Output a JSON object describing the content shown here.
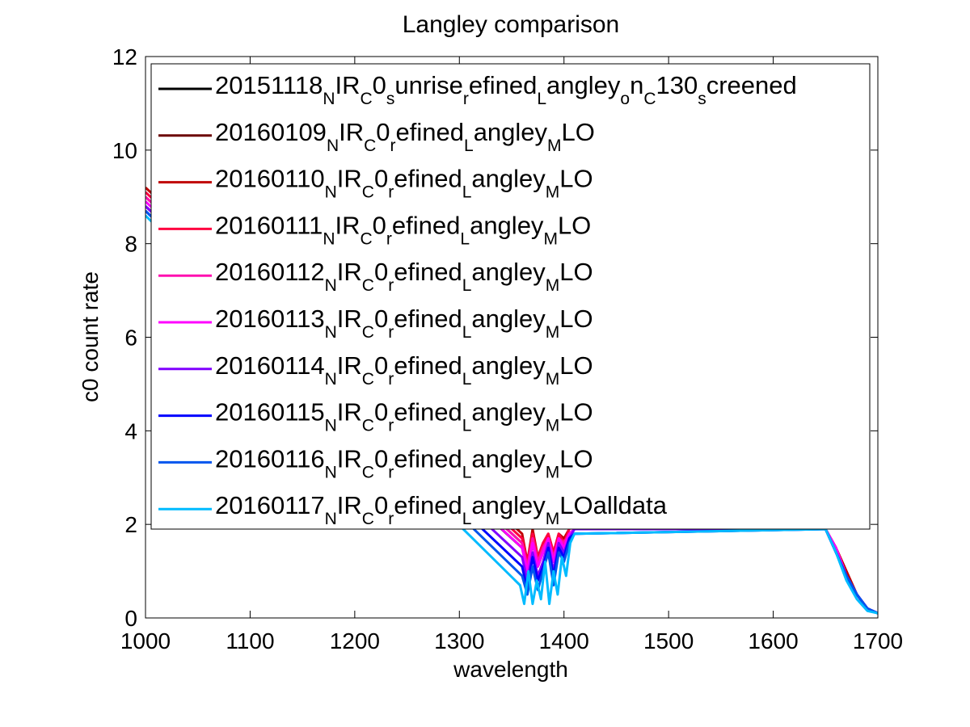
{
  "chart_data": {
    "type": "line",
    "title": "Langley comparison",
    "xlabel": "wavelength",
    "ylabel": "c0 count rate",
    "xlim": [
      1000,
      1700
    ],
    "ylim": [
      0,
      12
    ],
    "xticks": [
      1000,
      1100,
      1200,
      1300,
      1400,
      1500,
      1600,
      1700
    ],
    "yticks": [
      0,
      2,
      4,
      6,
      8,
      10,
      12
    ],
    "xtick_labels": [
      "1000",
      "1100",
      "1200",
      "1300",
      "1400",
      "1500",
      "1600",
      "1700"
    ],
    "ytick_labels": [
      "0",
      "2",
      "4",
      "6",
      "8",
      "10",
      "12"
    ],
    "grid": false,
    "legend_position": "top-right",
    "series": [
      {
        "name": "20151118_NIR_C0_sunrise_refined_Langley_on_C130_screened",
        "legend_parts": [
          [
            "20151118",
            ""
          ],
          [
            "N",
            "sub"
          ],
          [
            "IR",
            ""
          ],
          [
            "C",
            "sub"
          ],
          [
            "0",
            ""
          ],
          [
            "s",
            "sub"
          ],
          [
            "unrise",
            ""
          ],
          [
            "r",
            "sub"
          ],
          [
            "efined",
            ""
          ],
          [
            "L",
            "sub"
          ],
          [
            "angley",
            ""
          ],
          [
            "o",
            "sub"
          ],
          [
            "n",
            ""
          ],
          [
            "C",
            "sub"
          ],
          [
            "130",
            ""
          ],
          [
            "s",
            "sub"
          ],
          [
            "creened",
            ""
          ]
        ],
        "color": "#000000",
        "x": [
          1000,
          1360,
          1365,
          1370,
          1375,
          1380,
          1385,
          1390,
          1395,
          1400,
          1405,
          1410,
          1650,
          1660,
          1670,
          1680,
          1690,
          1700
        ],
        "y": [
          8.8,
          1.5,
          1.0,
          1.6,
          1.1,
          1.4,
          1.7,
          1.3,
          1.7,
          1.5,
          1.8,
          1.9,
          1.9,
          1.4,
          0.9,
          0.5,
          0.2,
          0.1
        ]
      },
      {
        "name": "20160109_NIR_C0_refined_Langley_MLO",
        "legend_parts": [
          [
            "20160109",
            ""
          ],
          [
            "N",
            "sub"
          ],
          [
            "IR",
            ""
          ],
          [
            "C",
            "sub"
          ],
          [
            "0",
            ""
          ],
          [
            "r",
            "sub"
          ],
          [
            "efined",
            ""
          ],
          [
            "L",
            "sub"
          ],
          [
            "angley",
            ""
          ],
          [
            "M",
            "sub"
          ],
          [
            "LO",
            ""
          ]
        ],
        "color": "#6b0000",
        "x": [
          1000,
          1360,
          1365,
          1370,
          1375,
          1380,
          1385,
          1390,
          1395,
          1400,
          1405,
          1410,
          1650,
          1660,
          1670,
          1680,
          1690,
          1700
        ],
        "y": [
          9.0,
          1.6,
          1.1,
          1.7,
          1.2,
          1.5,
          1.7,
          1.3,
          1.7,
          1.6,
          1.8,
          1.9,
          1.9,
          1.5,
          0.9,
          0.5,
          0.2,
          0.1
        ]
      },
      {
        "name": "20160110_NIR_C0_refined_Langley_MLO",
        "legend_parts": [
          [
            "20160110",
            ""
          ],
          [
            "N",
            "sub"
          ],
          [
            "IR",
            ""
          ],
          [
            "C",
            "sub"
          ],
          [
            "0",
            ""
          ],
          [
            "r",
            "sub"
          ],
          [
            "efined",
            ""
          ],
          [
            "L",
            "sub"
          ],
          [
            "angley",
            ""
          ],
          [
            "M",
            "sub"
          ],
          [
            "LO",
            ""
          ]
        ],
        "color": "#c00000",
        "x": [
          1000,
          1360,
          1365,
          1370,
          1375,
          1380,
          1385,
          1390,
          1395,
          1400,
          1405,
          1410,
          1650,
          1660,
          1670,
          1680,
          1690,
          1700
        ],
        "y": [
          9.2,
          1.8,
          1.2,
          1.9,
          1.3,
          1.6,
          1.8,
          1.4,
          1.8,
          1.7,
          1.9,
          2.0,
          1.9,
          1.5,
          1.0,
          0.5,
          0.2,
          0.1
        ]
      },
      {
        "name": "20160111_NIR_C0_refined_Langley_MLO",
        "legend_parts": [
          [
            "20160111",
            ""
          ],
          [
            "N",
            "sub"
          ],
          [
            "IR",
            ""
          ],
          [
            "C",
            "sub"
          ],
          [
            "0",
            ""
          ],
          [
            "r",
            "sub"
          ],
          [
            "efined",
            ""
          ],
          [
            "L",
            "sub"
          ],
          [
            "angley",
            ""
          ],
          [
            "M",
            "sub"
          ],
          [
            "LO",
            ""
          ]
        ],
        "color": "#ff0040",
        "x": [
          1000,
          1360,
          1365,
          1370,
          1375,
          1380,
          1385,
          1390,
          1395,
          1400,
          1405,
          1410,
          1650,
          1660,
          1670,
          1680,
          1690,
          1700
        ],
        "y": [
          9.1,
          1.7,
          1.2,
          1.8,
          1.3,
          1.6,
          1.8,
          1.4,
          1.8,
          1.6,
          1.9,
          2.0,
          1.9,
          1.5,
          0.9,
          0.5,
          0.2,
          0.1
        ]
      },
      {
        "name": "20160112_NIR_C0_refined_Langley_MLO",
        "legend_parts": [
          [
            "20160112",
            ""
          ],
          [
            "N",
            "sub"
          ],
          [
            "IR",
            ""
          ],
          [
            "C",
            "sub"
          ],
          [
            "0",
            ""
          ],
          [
            "r",
            "sub"
          ],
          [
            "efined",
            ""
          ],
          [
            "L",
            "sub"
          ],
          [
            "angley",
            ""
          ],
          [
            "M",
            "sub"
          ],
          [
            "LO",
            ""
          ]
        ],
        "color": "#ff10b0",
        "x": [
          1000,
          1360,
          1365,
          1370,
          1375,
          1380,
          1385,
          1390,
          1395,
          1400,
          1405,
          1410,
          1650,
          1660,
          1670,
          1680,
          1690,
          1700
        ],
        "y": [
          9.0,
          1.6,
          1.1,
          1.7,
          1.2,
          1.5,
          1.7,
          1.3,
          1.7,
          1.6,
          1.8,
          1.9,
          1.9,
          1.5,
          0.9,
          0.5,
          0.2,
          0.1
        ]
      },
      {
        "name": "20160113_NIR_C0_refined_Langley_MLO",
        "legend_parts": [
          [
            "20160113",
            ""
          ],
          [
            "N",
            "sub"
          ],
          [
            "IR",
            ""
          ],
          [
            "C",
            "sub"
          ],
          [
            "0",
            ""
          ],
          [
            "r",
            "sub"
          ],
          [
            "efined",
            ""
          ],
          [
            "L",
            "sub"
          ],
          [
            "angley",
            ""
          ],
          [
            "M",
            "sub"
          ],
          [
            "LO",
            ""
          ]
        ],
        "color": "#ff00ff",
        "x": [
          1000,
          1360,
          1365,
          1370,
          1375,
          1380,
          1385,
          1390,
          1395,
          1400,
          1405,
          1410,
          1650,
          1660,
          1670,
          1680,
          1690,
          1700
        ],
        "y": [
          8.9,
          1.5,
          1.0,
          1.6,
          1.1,
          1.4,
          1.7,
          1.2,
          1.7,
          1.5,
          1.8,
          1.9,
          1.9,
          1.5,
          0.9,
          0.5,
          0.2,
          0.1
        ]
      },
      {
        "name": "20160114_NIR_C0_refined_Langley_MLO",
        "legend_parts": [
          [
            "20160114",
            ""
          ],
          [
            "N",
            "sub"
          ],
          [
            "IR",
            ""
          ],
          [
            "C",
            "sub"
          ],
          [
            "0",
            ""
          ],
          [
            "r",
            "sub"
          ],
          [
            "efined",
            ""
          ],
          [
            "L",
            "sub"
          ],
          [
            "angley",
            ""
          ],
          [
            "M",
            "sub"
          ],
          [
            "LO",
            ""
          ]
        ],
        "color": "#8000ff",
        "x": [
          1000,
          1360,
          1365,
          1370,
          1375,
          1380,
          1385,
          1390,
          1395,
          1400,
          1405,
          1410,
          1650,
          1660,
          1670,
          1680,
          1690,
          1700
        ],
        "y": [
          8.8,
          1.3,
          0.8,
          1.4,
          0.9,
          1.2,
          1.6,
          1.0,
          1.6,
          1.4,
          1.7,
          1.9,
          1.9,
          1.4,
          0.9,
          0.5,
          0.2,
          0.1
        ]
      },
      {
        "name": "20160115_NIR_C0_refined_Langley_MLO",
        "legend_parts": [
          [
            "20160115",
            ""
          ],
          [
            "N",
            "sub"
          ],
          [
            "IR",
            ""
          ],
          [
            "C",
            "sub"
          ],
          [
            "0",
            ""
          ],
          [
            "r",
            "sub"
          ],
          [
            "efined",
            ""
          ],
          [
            "L",
            "sub"
          ],
          [
            "angley",
            ""
          ],
          [
            "M",
            "sub"
          ],
          [
            "LO",
            ""
          ]
        ],
        "color": "#0000ff",
        "x": [
          1000,
          1360,
          1365,
          1370,
          1375,
          1380,
          1385,
          1390,
          1395,
          1400,
          1405,
          1410,
          1650,
          1660,
          1670,
          1680,
          1690,
          1700
        ],
        "y": [
          8.7,
          1.1,
          0.6,
          1.3,
          0.8,
          1.1,
          1.5,
          0.9,
          1.5,
          1.3,
          1.7,
          1.8,
          1.9,
          1.4,
          0.9,
          0.5,
          0.2,
          0.1
        ]
      },
      {
        "name": "20160116_NIR_C0_refined_Langley_MLO",
        "legend_parts": [
          [
            "20160116",
            ""
          ],
          [
            "N",
            "sub"
          ],
          [
            "IR",
            ""
          ],
          [
            "C",
            "sub"
          ],
          [
            "0",
            ""
          ],
          [
            "r",
            "sub"
          ],
          [
            "efined",
            ""
          ],
          [
            "L",
            "sub"
          ],
          [
            "angley",
            ""
          ],
          [
            "M",
            "sub"
          ],
          [
            "LO",
            ""
          ]
        ],
        "color": "#0055ee",
        "x": [
          1000,
          1360,
          1365,
          1370,
          1375,
          1380,
          1385,
          1390,
          1395,
          1400,
          1405,
          1410,
          1650,
          1660,
          1670,
          1680,
          1690,
          1700
        ],
        "y": [
          8.7,
          0.9,
          0.5,
          1.1,
          0.6,
          1.0,
          1.4,
          0.7,
          1.4,
          1.2,
          1.6,
          1.8,
          1.9,
          1.4,
          0.9,
          0.5,
          0.2,
          0.1
        ]
      },
      {
        "name": "20160117_NIR_C0_refined_Langley_MLOalldata",
        "legend_parts": [
          [
            "20160117",
            ""
          ],
          [
            "N",
            "sub"
          ],
          [
            "IR",
            ""
          ],
          [
            "C",
            "sub"
          ],
          [
            "0",
            ""
          ],
          [
            "r",
            "sub"
          ],
          [
            "efined",
            ""
          ],
          [
            "L",
            "sub"
          ],
          [
            "angley",
            ""
          ],
          [
            "M",
            "sub"
          ],
          [
            "LOalldata",
            ""
          ]
        ],
        "color": "#00bbff",
        "x": [
          1000,
          1358,
          1362,
          1366,
          1370,
          1374,
          1378,
          1382,
          1386,
          1390,
          1394,
          1398,
          1402,
          1406,
          1410,
          1650,
          1660,
          1670,
          1680,
          1690,
          1700
        ],
        "y": [
          8.6,
          0.7,
          0.3,
          1.0,
          0.3,
          0.8,
          0.4,
          1.2,
          0.3,
          1.0,
          0.5,
          1.3,
          0.9,
          1.6,
          1.8,
          1.9,
          1.4,
          0.8,
          0.4,
          0.15,
          0.1
        ]
      }
    ]
  }
}
